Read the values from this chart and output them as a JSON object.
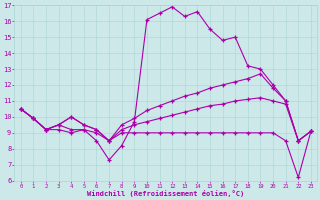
{
  "hours": [
    0,
    1,
    2,
    3,
    4,
    5,
    6,
    7,
    8,
    9,
    10,
    11,
    12,
    13,
    14,
    15,
    16,
    17,
    18,
    19,
    20,
    21,
    22,
    23
  ],
  "line_jagged": [
    10.5,
    9.9,
    9.2,
    9.2,
    9.0,
    9.2,
    8.5,
    7.3,
    8.2,
    9.7,
    16.1,
    16.5,
    16.9,
    16.3,
    16.6,
    15.5,
    14.8,
    15.0,
    13.2,
    13.0,
    12.0,
    11.0,
    8.5,
    9.1
  ],
  "line_diag_high": [
    10.5,
    9.9,
    9.2,
    9.5,
    10.0,
    9.5,
    9.2,
    8.5,
    9.5,
    9.9,
    10.4,
    10.7,
    11.0,
    11.3,
    11.5,
    11.8,
    12.0,
    12.2,
    12.4,
    12.7,
    11.8,
    11.0,
    8.5,
    9.1
  ],
  "line_diag_low": [
    10.5,
    9.9,
    9.2,
    9.5,
    10.0,
    9.5,
    9.2,
    8.5,
    9.2,
    9.5,
    9.7,
    9.9,
    10.1,
    10.3,
    10.5,
    10.7,
    10.8,
    11.0,
    11.1,
    11.2,
    11.0,
    10.8,
    8.5,
    9.1
  ],
  "line_flat": [
    10.5,
    9.9,
    9.2,
    9.5,
    9.2,
    9.2,
    9.0,
    8.5,
    9.0,
    9.0,
    9.0,
    9.0,
    9.0,
    9.0,
    9.0,
    9.0,
    9.0,
    9.0,
    9.0,
    9.0,
    9.0,
    8.5,
    6.2,
    9.1
  ],
  "bg_color": "#cce8e8",
  "line_color": "#aa00aa",
  "grid_color": "#aad4d4",
  "xlabel": "Windchill (Refroidissement éolien,°C)",
  "ylim": [
    6,
    17
  ],
  "yticks": [
    6,
    7,
    8,
    9,
    10,
    11,
    12,
    13,
    14,
    15,
    16,
    17
  ],
  "xticks": [
    0,
    1,
    2,
    3,
    4,
    5,
    6,
    7,
    8,
    9,
    10,
    11,
    12,
    13,
    14,
    15,
    16,
    17,
    18,
    19,
    20,
    21,
    22,
    23
  ]
}
